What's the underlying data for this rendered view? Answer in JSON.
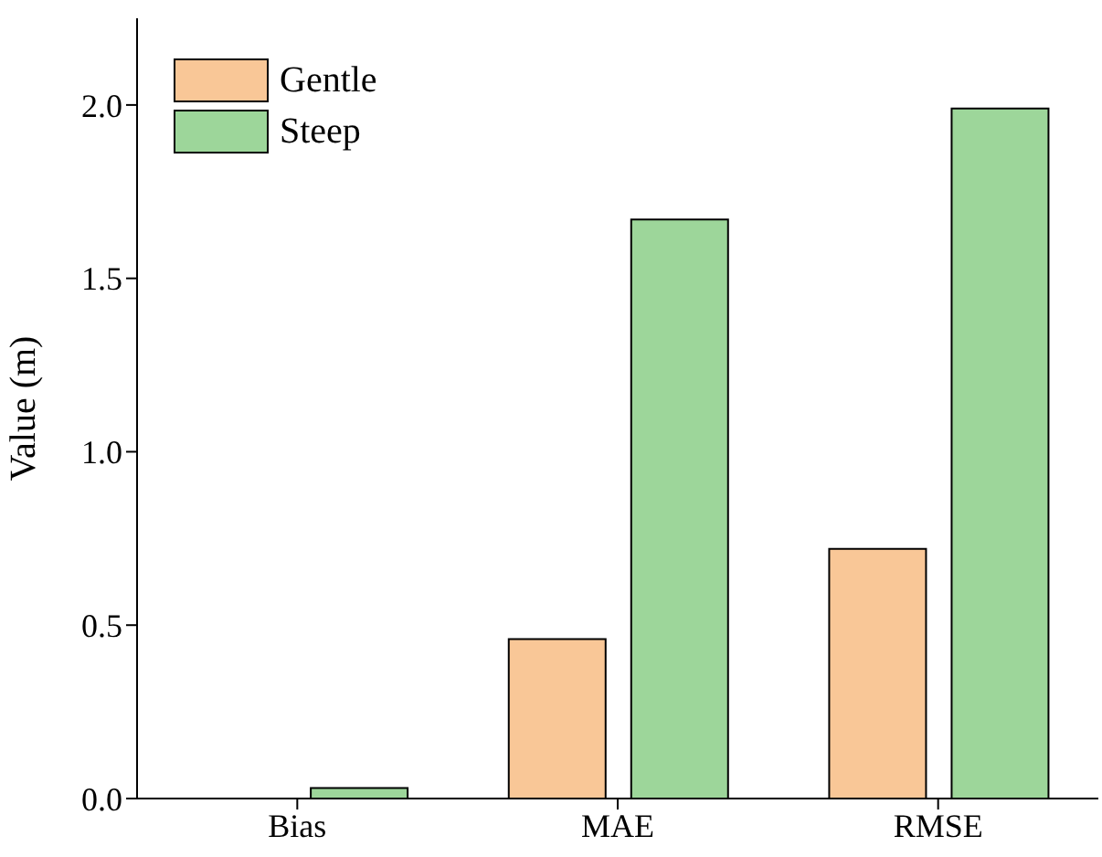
{
  "chart_data": {
    "type": "bar",
    "ylabel": "Value (m)",
    "categories": [
      "Bias",
      "MAE",
      "RMSE"
    ],
    "series": [
      {
        "name": "Gentle",
        "color": "#f9c797",
        "values": [
          0,
          0.46,
          0.72
        ]
      },
      {
        "name": "Steep",
        "color": "#9dd69a",
        "values": [
          0.03,
          1.67,
          1.99
        ]
      }
    ],
    "ylim": [
      0,
      2.25
    ],
    "yticks": [
      {
        "value": 0,
        "label": "0.0"
      },
      0.5,
      {
        "value": 1,
        "label": "1.0"
      },
      1.5,
      {
        "value": 2,
        "label": "2.0"
      }
    ],
    "grid": false,
    "legend": "top left"
  }
}
